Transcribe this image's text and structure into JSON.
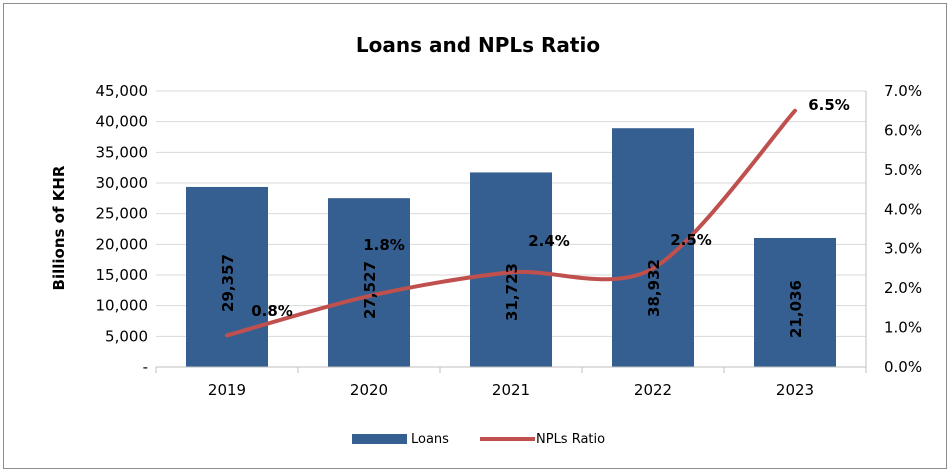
{
  "chart_data": {
    "type": "bar",
    "title": "Loans and NPLs Ratio",
    "xlabel": "",
    "ylabel": "Billions of KHR",
    "categories": [
      "2019",
      "2020",
      "2021",
      "2022",
      "2023"
    ],
    "ylim": [
      0,
      45000
    ],
    "yticks": [
      0,
      5000,
      10000,
      15000,
      20000,
      25000,
      30000,
      35000,
      40000,
      45000
    ],
    "ytick_labels": [
      "-",
      "5,000",
      "10,000",
      "15,000",
      "20,000",
      "25,000",
      "30,000",
      "35,000",
      "40,000",
      "45,000"
    ],
    "y2lim": [
      0,
      7
    ],
    "y2ticks": [
      0,
      1,
      2,
      3,
      4,
      5,
      6,
      7
    ],
    "y2tick_labels": [
      "0.0%",
      "1.0%",
      "2.0%",
      "3.0%",
      "4.0%",
      "5.0%",
      "6.0%",
      "7.0%"
    ],
    "legend_position": "bottom",
    "series": [
      {
        "name": "Loans",
        "type": "bar",
        "axis": "left",
        "color": "#365f91",
        "values": [
          29357,
          27527,
          31723,
          38932,
          21036
        ],
        "labels": [
          "29,357",
          "27,527",
          "31,723",
          "38,932",
          "21,036"
        ]
      },
      {
        "name": "NPLs Ratio",
        "type": "line",
        "axis": "right",
        "color": "#c0504d",
        "values": [
          0.8,
          1.8,
          2.4,
          2.5,
          6.5
        ],
        "labels": [
          "0.8%",
          "1.8%",
          "2.4%",
          "2.5%",
          "6.5%"
        ]
      }
    ]
  }
}
